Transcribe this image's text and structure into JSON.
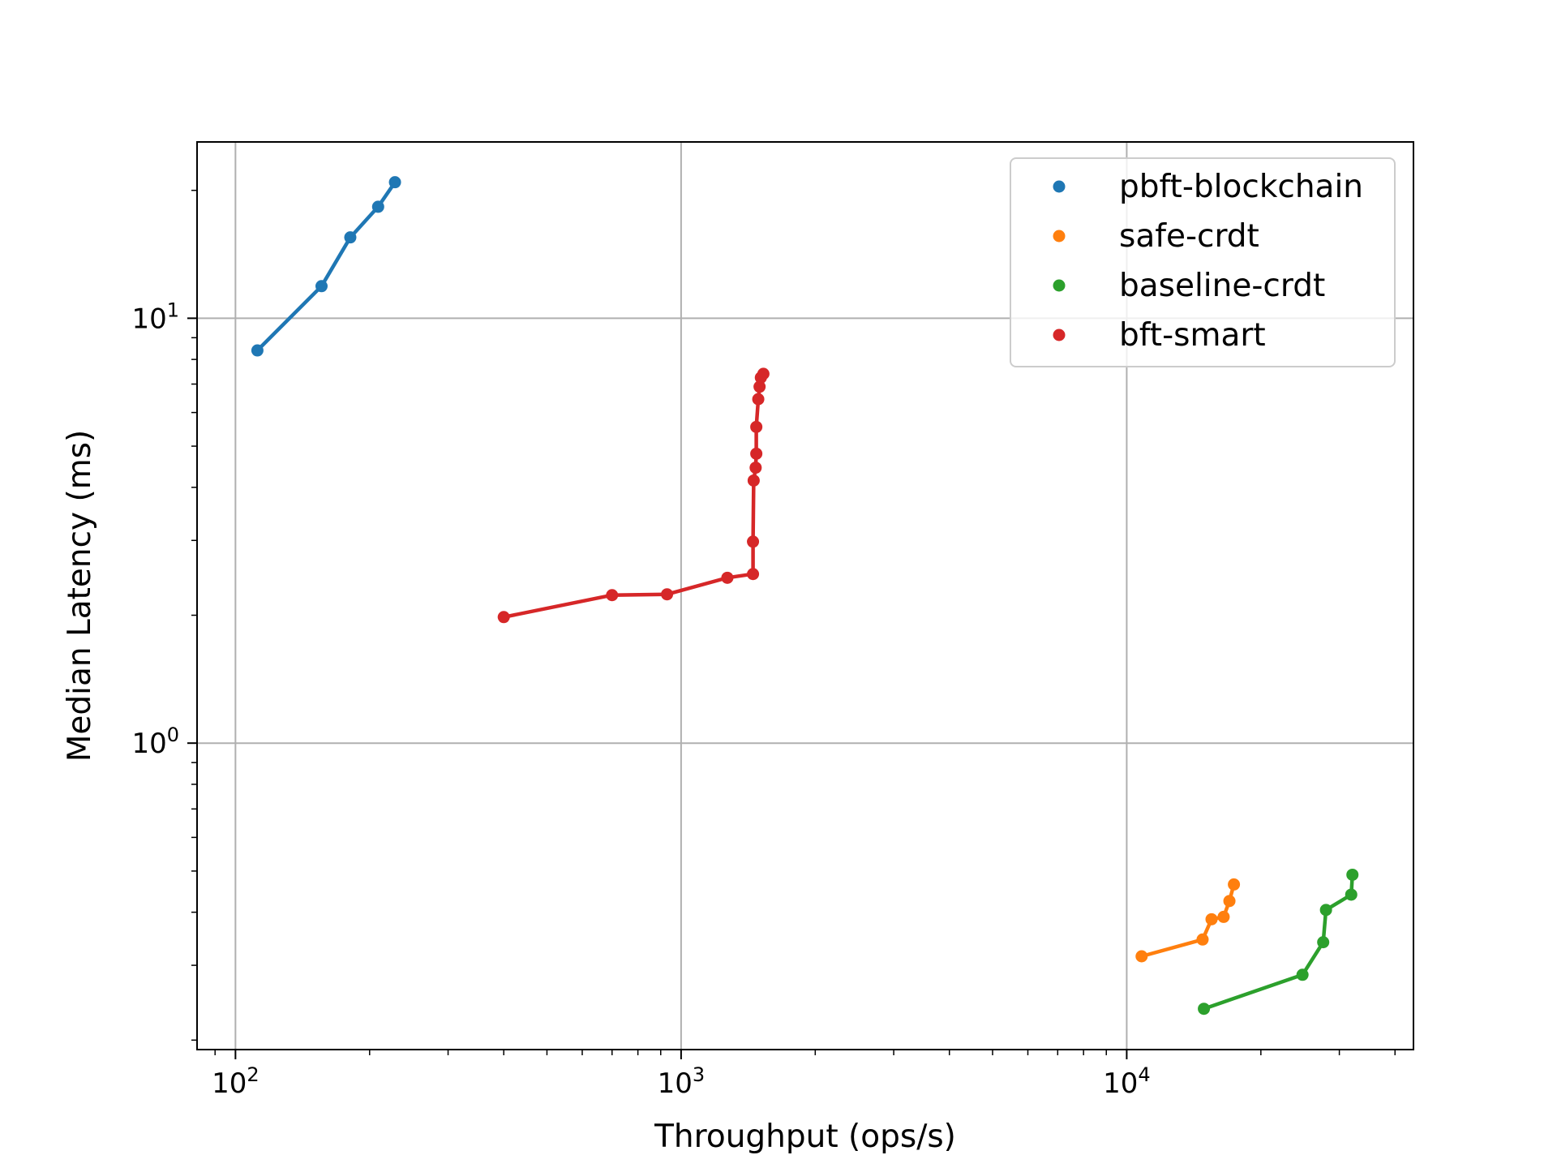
{
  "chart_data": {
    "type": "line",
    "title": "",
    "xlabel": "Throughput (ops/s)",
    "ylabel": "Median Latency (ms)",
    "xscale": "log",
    "yscale": "log",
    "xlim": [
      82,
      44000
    ],
    "ylim": [
      0.19,
      26
    ],
    "grid": true,
    "legend": "top-right",
    "x_ticks": [
      {
        "value": 100,
        "base": "10",
        "exp": "2"
      },
      {
        "value": 1000,
        "base": "10",
        "exp": "3"
      },
      {
        "value": 10000,
        "base": "10",
        "exp": "4"
      }
    ],
    "y_ticks": [
      {
        "value": 1,
        "base": "10",
        "exp": "0"
      },
      {
        "value": 10,
        "base": "10",
        "exp": "1"
      }
    ],
    "series": [
      {
        "name": "pbft-blockchain",
        "color": "#1f77b4",
        "points": [
          [
            112,
            8.4
          ],
          [
            156,
            11.9
          ],
          [
            181,
            15.5
          ],
          [
            209,
            18.3
          ],
          [
            228,
            20.9
          ]
        ]
      },
      {
        "name": "safe-crdt",
        "color": "#ff7f0e",
        "points": [
          [
            10800,
            0.315
          ],
          [
            14800,
            0.345
          ],
          [
            15500,
            0.385
          ],
          [
            16500,
            0.39
          ],
          [
            17000,
            0.425
          ],
          [
            17400,
            0.465
          ]
        ]
      },
      {
        "name": "baseline-crdt",
        "color": "#2ca02c",
        "points": [
          [
            14900,
            0.237
          ],
          [
            24800,
            0.285
          ],
          [
            27600,
            0.34
          ],
          [
            28000,
            0.405
          ],
          [
            31900,
            0.44
          ],
          [
            32100,
            0.49
          ]
        ]
      },
      {
        "name": "bft-smart",
        "color": "#d62728",
        "points": [
          [
            400,
            1.98
          ],
          [
            700,
            2.23
          ],
          [
            930,
            2.24
          ],
          [
            1270,
            2.45
          ],
          [
            1450,
            2.5
          ],
          [
            1450,
            2.98
          ],
          [
            1455,
            4.15
          ],
          [
            1470,
            4.45
          ],
          [
            1475,
            4.8
          ],
          [
            1475,
            5.55
          ],
          [
            1490,
            6.45
          ],
          [
            1500,
            6.9
          ],
          [
            1510,
            7.25
          ],
          [
            1530,
            7.4
          ]
        ]
      }
    ]
  }
}
